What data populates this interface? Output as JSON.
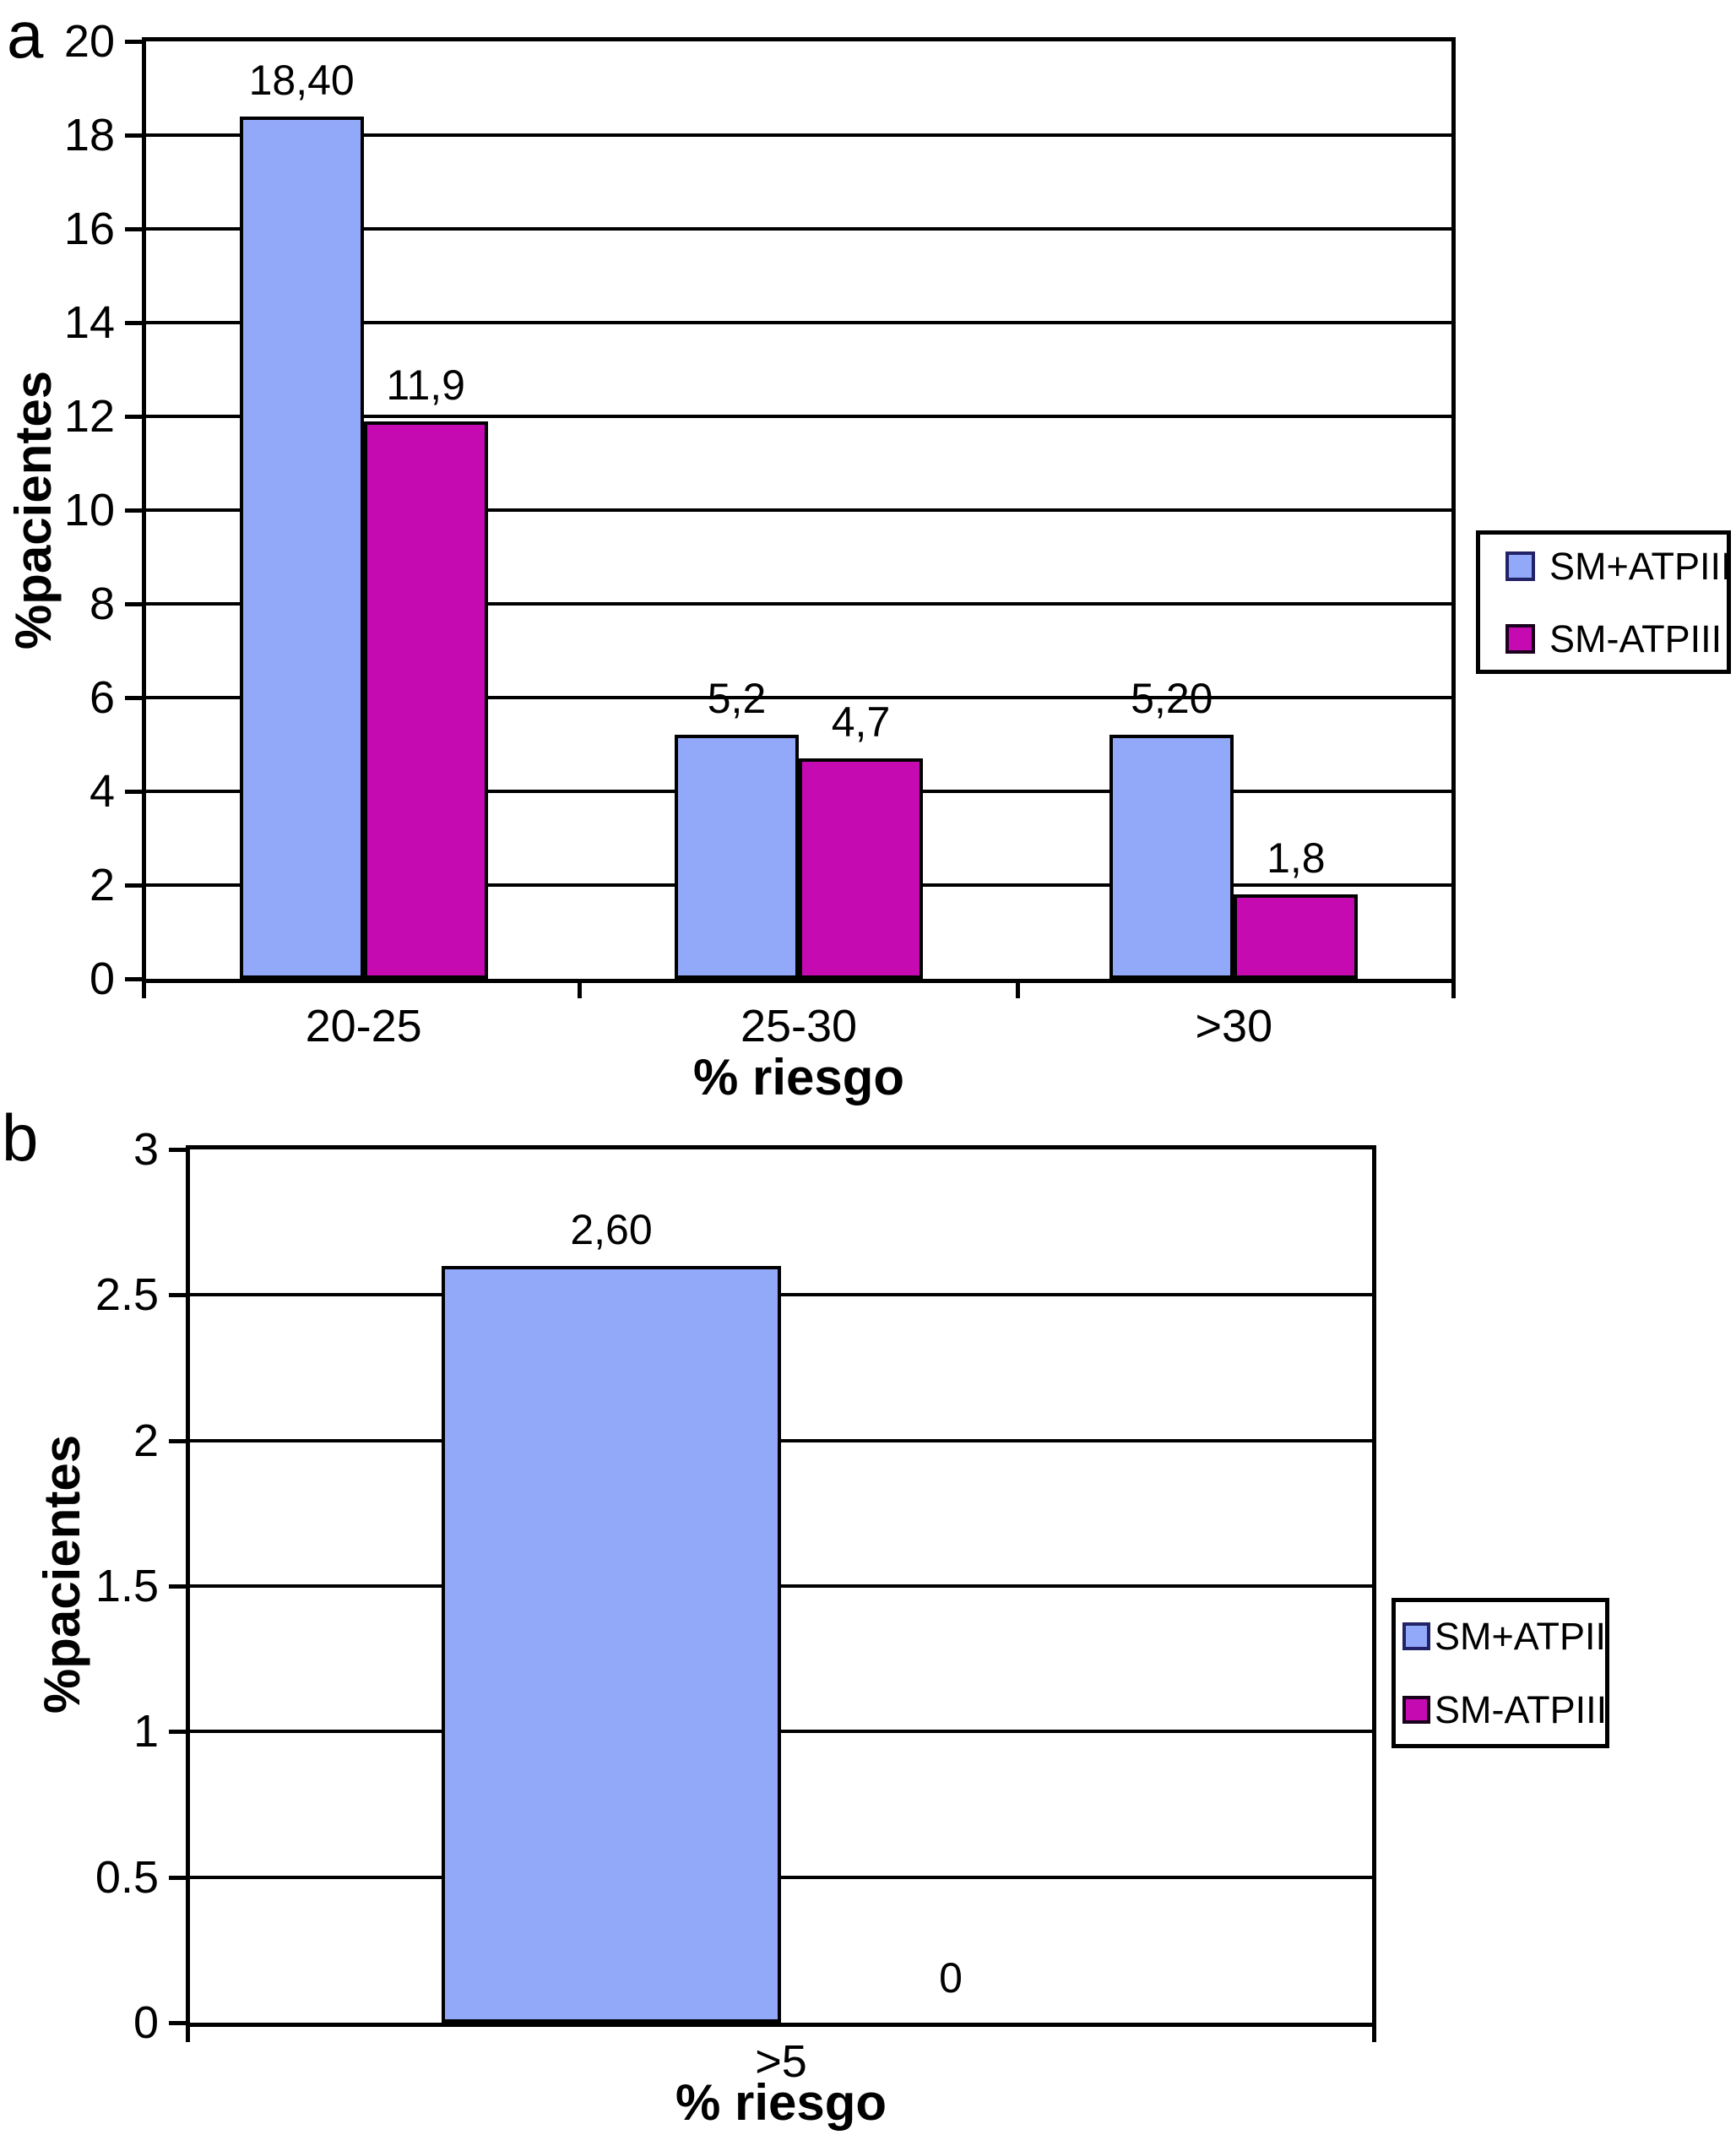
{
  "figure": {
    "background": "#ffffff",
    "line_color": "#000000"
  },
  "chart_data": [
    {
      "panel_label": "a",
      "type": "bar",
      "categories": [
        "20-25",
        "25-30",
        ">30"
      ],
      "series": [
        {
          "name": "SM+ATPIII",
          "color": "#92A8F8",
          "swatch_border": "#222266",
          "values": [
            18.4,
            5.2,
            5.2
          ],
          "value_labels": [
            "18,40",
            "5,2",
            "5,20"
          ]
        },
        {
          "name": "SM-ATPIII",
          "color": "#C60AB2",
          "swatch_border": "#1a001a",
          "values": [
            11.9,
            4.7,
            1.8
          ],
          "value_labels": [
            "11,9",
            "4,7",
            "1,8"
          ]
        }
      ],
      "legend_labels": [
        "SM+ATPIII",
        "SM-ATPIII"
      ],
      "legend_position": "right",
      "xlabel": "% riesgo",
      "ylabel": "%pacientes",
      "ylim": [
        0,
        20
      ],
      "yticks": [
        {
          "v": 0,
          "label": "0"
        },
        {
          "v": 2,
          "label": "2"
        },
        {
          "v": 4,
          "label": "4"
        },
        {
          "v": 6,
          "label": "6"
        },
        {
          "v": 8,
          "label": "8"
        },
        {
          "v": 10,
          "label": "10"
        },
        {
          "v": 12,
          "label": "12"
        },
        {
          "v": 14,
          "label": "14"
        },
        {
          "v": 16,
          "label": "16"
        },
        {
          "v": 18,
          "label": "18"
        },
        {
          "v": 20,
          "label": "20"
        }
      ],
      "grid": true
    },
    {
      "panel_label": "b",
      "type": "bar",
      "categories": [
        ">5"
      ],
      "series": [
        {
          "name": "SM+ATPII",
          "color": "#92A8F8",
          "swatch_border": "#222266",
          "values": [
            2.6
          ],
          "value_labels": [
            "2,60"
          ]
        },
        {
          "name": "SM-ATPIII",
          "color": "#C60AB2",
          "swatch_border": "#1a001a",
          "values": [
            0
          ],
          "value_labels": [
            "0"
          ]
        }
      ],
      "legend_labels": [
        "SM+ATPII",
        "SM-ATPIII"
      ],
      "legend_position": "right",
      "xlabel": "% riesgo",
      "ylabel": "%pacientes",
      "ylim": [
        0,
        3
      ],
      "yticks": [
        {
          "v": 0,
          "label": "0"
        },
        {
          "v": 0.5,
          "label": "0.5"
        },
        {
          "v": 1,
          "label": "1"
        },
        {
          "v": 1.5,
          "label": "1.5"
        },
        {
          "v": 2,
          "label": "2"
        },
        {
          "v": 2.5,
          "label": "2.5"
        },
        {
          "v": 3,
          "label": "3"
        }
      ],
      "grid": true
    }
  ]
}
